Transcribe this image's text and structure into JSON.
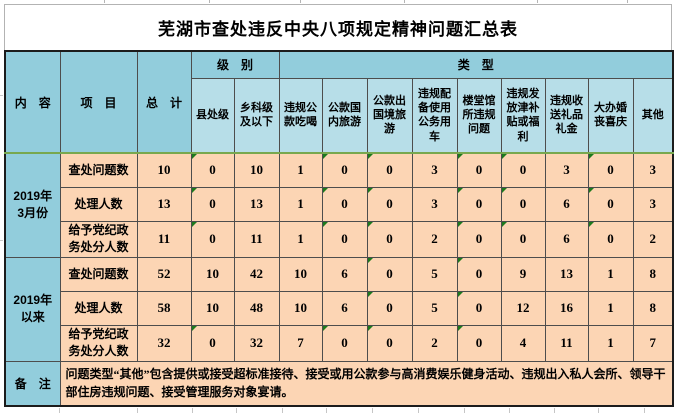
{
  "title": "芜湖市查处违反中央八项规定精神问题汇总表",
  "header": {
    "content": "内　容",
    "item": "项　目",
    "total": "总　计",
    "level_group": "级　别",
    "type_group": "类　型",
    "level_cols": [
      "县处级",
      "乡科级及以下"
    ],
    "type_cols": [
      "违规公款吃喝",
      "公款国内旅游",
      "公款出国境旅游",
      "违规配备使用公务用车",
      "楼堂馆所违规问题",
      "违规发放津补贴或福利",
      "违规收送礼品礼金",
      "大办婚丧喜庆",
      "其他"
    ]
  },
  "groups": [
    {
      "period": "2019年\n3月份",
      "rows": [
        {
          "label": "查处问题数",
          "values": [
            "10",
            "0",
            "10",
            "1",
            "0",
            "0",
            "3",
            "0",
            "0",
            "3",
            "0",
            "3"
          ]
        },
        {
          "label": "处理人数",
          "values": [
            "13",
            "0",
            "13",
            "1",
            "0",
            "0",
            "3",
            "0",
            "0",
            "6",
            "0",
            "3"
          ]
        },
        {
          "label": "给予党纪政\n务处分人数",
          "values": [
            "11",
            "0",
            "11",
            "1",
            "0",
            "0",
            "2",
            "0",
            "0",
            "6",
            "0",
            "2"
          ]
        }
      ]
    },
    {
      "period": "2019年\n以来",
      "rows": [
        {
          "label": "查处问题数",
          "values": [
            "52",
            "10",
            "42",
            "10",
            "6",
            "0",
            "5",
            "0",
            "9",
            "13",
            "1",
            "8"
          ]
        },
        {
          "label": "处理人数",
          "values": [
            "58",
            "10",
            "48",
            "10",
            "6",
            "0",
            "5",
            "0",
            "12",
            "16",
            "1",
            "8"
          ]
        },
        {
          "label": "给予党纪政\n务处分人数",
          "values": [
            "32",
            "0",
            "32",
            "7",
            "0",
            "0",
            "2",
            "0",
            "4",
            "11",
            "1",
            "7"
          ]
        }
      ]
    }
  ],
  "remark": {
    "label": "备　注",
    "text": "问题类型“其他”包含提供或接受超标准接待、接受或用公款参与高消费娱乐健身活动、违规出入私人会所、领导干部住房违规问题、接受管理服务对象宴请。"
  },
  "colors": {
    "header_teal": "#92CDDC",
    "subheader_blue": "#B7DEE8",
    "data_peach": "#FCD5B4",
    "grid_border": "#4d4d4d",
    "green_separator": "#78a84f",
    "zero_flag_green": "#1d7a1d"
  }
}
